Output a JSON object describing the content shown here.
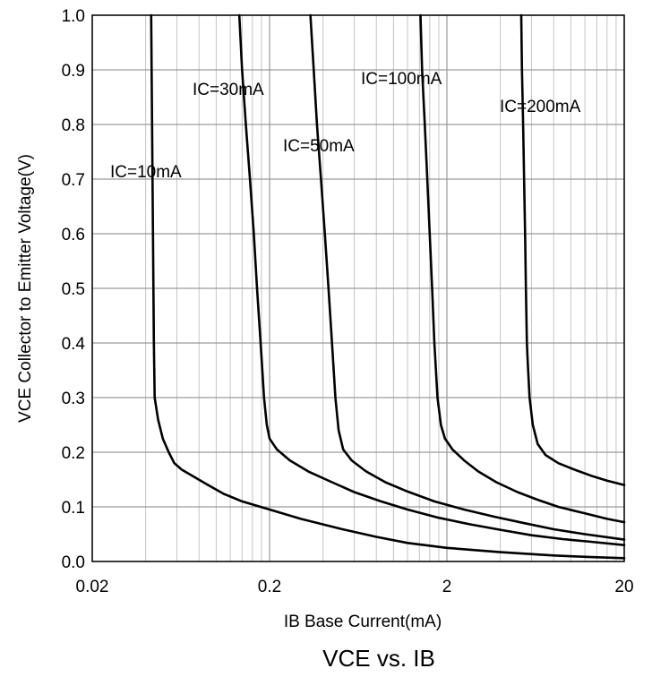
{
  "chart_data": {
    "type": "line",
    "title": "VCE vs. IB",
    "xlabel": "IB Base Current(mA)",
    "ylabel": "VCE Collector to Emitter Voltage(V)",
    "x_scale": "log",
    "xlim": [
      0.02,
      20
    ],
    "ylim": [
      0.0,
      1.0
    ],
    "x_ticks": [
      "0.02",
      "0.2",
      "2",
      "20"
    ],
    "y_ticks": [
      "0.0",
      "0.1",
      "0.2",
      "0.3",
      "0.4",
      "0.5",
      "0.6",
      "0.7",
      "0.8",
      "0.9",
      "1.0"
    ],
    "grid": true,
    "series": [
      {
        "name": "IC=10mA",
        "points": [
          [
            0.043,
            1.0
          ],
          [
            0.0435,
            0.8
          ],
          [
            0.044,
            0.6
          ],
          [
            0.0445,
            0.4
          ],
          [
            0.045,
            0.3
          ],
          [
            0.047,
            0.26
          ],
          [
            0.05,
            0.225
          ],
          [
            0.054,
            0.2
          ],
          [
            0.058,
            0.18
          ],
          [
            0.064,
            0.168
          ],
          [
            0.075,
            0.155
          ],
          [
            0.09,
            0.14
          ],
          [
            0.11,
            0.124
          ],
          [
            0.14,
            0.11
          ],
          [
            0.2,
            0.095
          ],
          [
            0.3,
            0.078
          ],
          [
            0.5,
            0.06
          ],
          [
            0.8,
            0.045
          ],
          [
            1.2,
            0.034
          ],
          [
            2,
            0.025
          ],
          [
            4,
            0.017
          ],
          [
            8,
            0.011
          ],
          [
            13,
            0.008
          ],
          [
            20,
            0.006
          ]
        ]
      },
      {
        "name": "IC=30mA",
        "points": [
          [
            0.135,
            1.0
          ],
          [
            0.14,
            0.9
          ],
          [
            0.147,
            0.8
          ],
          [
            0.155,
            0.7
          ],
          [
            0.163,
            0.6
          ],
          [
            0.17,
            0.5
          ],
          [
            0.178,
            0.4
          ],
          [
            0.186,
            0.3
          ],
          [
            0.193,
            0.25
          ],
          [
            0.2,
            0.225
          ],
          [
            0.22,
            0.205
          ],
          [
            0.26,
            0.185
          ],
          [
            0.33,
            0.165
          ],
          [
            0.45,
            0.145
          ],
          [
            0.6,
            0.127
          ],
          [
            0.85,
            0.11
          ],
          [
            1.2,
            0.095
          ],
          [
            1.8,
            0.08
          ],
          [
            2.7,
            0.068
          ],
          [
            4,
            0.058
          ],
          [
            6,
            0.048
          ],
          [
            9,
            0.041
          ],
          [
            13,
            0.036
          ],
          [
            20,
            0.03
          ]
        ]
      },
      {
        "name": "IC=50mA",
        "points": [
          [
            0.34,
            1.0
          ],
          [
            0.355,
            0.9
          ],
          [
            0.37,
            0.8
          ],
          [
            0.39,
            0.7
          ],
          [
            0.41,
            0.6
          ],
          [
            0.43,
            0.5
          ],
          [
            0.45,
            0.4
          ],
          [
            0.47,
            0.3
          ],
          [
            0.49,
            0.24
          ],
          [
            0.52,
            0.205
          ],
          [
            0.58,
            0.185
          ],
          [
            0.7,
            0.165
          ],
          [
            0.9,
            0.145
          ],
          [
            1.2,
            0.128
          ],
          [
            1.7,
            0.11
          ],
          [
            2.5,
            0.095
          ],
          [
            3.7,
            0.082
          ],
          [
            5.5,
            0.07
          ],
          [
            8,
            0.059
          ],
          [
            12,
            0.05
          ],
          [
            20,
            0.04
          ]
        ]
      },
      {
        "name": "IC=100mA",
        "points": [
          [
            1.42,
            1.0
          ],
          [
            1.45,
            0.9
          ],
          [
            1.5,
            0.8
          ],
          [
            1.55,
            0.7
          ],
          [
            1.6,
            0.6
          ],
          [
            1.65,
            0.5
          ],
          [
            1.7,
            0.4
          ],
          [
            1.77,
            0.3
          ],
          [
            1.85,
            0.25
          ],
          [
            1.95,
            0.225
          ],
          [
            2.15,
            0.205
          ],
          [
            2.5,
            0.185
          ],
          [
            3,
            0.165
          ],
          [
            3.8,
            0.145
          ],
          [
            5,
            0.127
          ],
          [
            6.5,
            0.113
          ],
          [
            8.5,
            0.1
          ],
          [
            12,
            0.088
          ],
          [
            16,
            0.078
          ],
          [
            20,
            0.072
          ]
        ]
      },
      {
        "name": "IC=200mA",
        "points": [
          [
            5.25,
            1.0
          ],
          [
            5.3,
            0.9
          ],
          [
            5.38,
            0.8
          ],
          [
            5.45,
            0.7
          ],
          [
            5.52,
            0.6
          ],
          [
            5.58,
            0.5
          ],
          [
            5.65,
            0.4
          ],
          [
            5.72,
            0.36
          ],
          [
            5.85,
            0.3
          ],
          [
            6.1,
            0.25
          ],
          [
            6.5,
            0.215
          ],
          [
            7.2,
            0.195
          ],
          [
            8.5,
            0.18
          ],
          [
            10.5,
            0.168
          ],
          [
            13,
            0.157
          ],
          [
            16,
            0.148
          ],
          [
            20,
            0.14
          ]
        ]
      }
    ],
    "annotations": [
      {
        "text": "IC=10mA"
      },
      {
        "text": "IC=30mA"
      },
      {
        "text": "IC=50mA"
      },
      {
        "text": "IC=100mA"
      },
      {
        "text": "IC=200mA"
      }
    ]
  }
}
